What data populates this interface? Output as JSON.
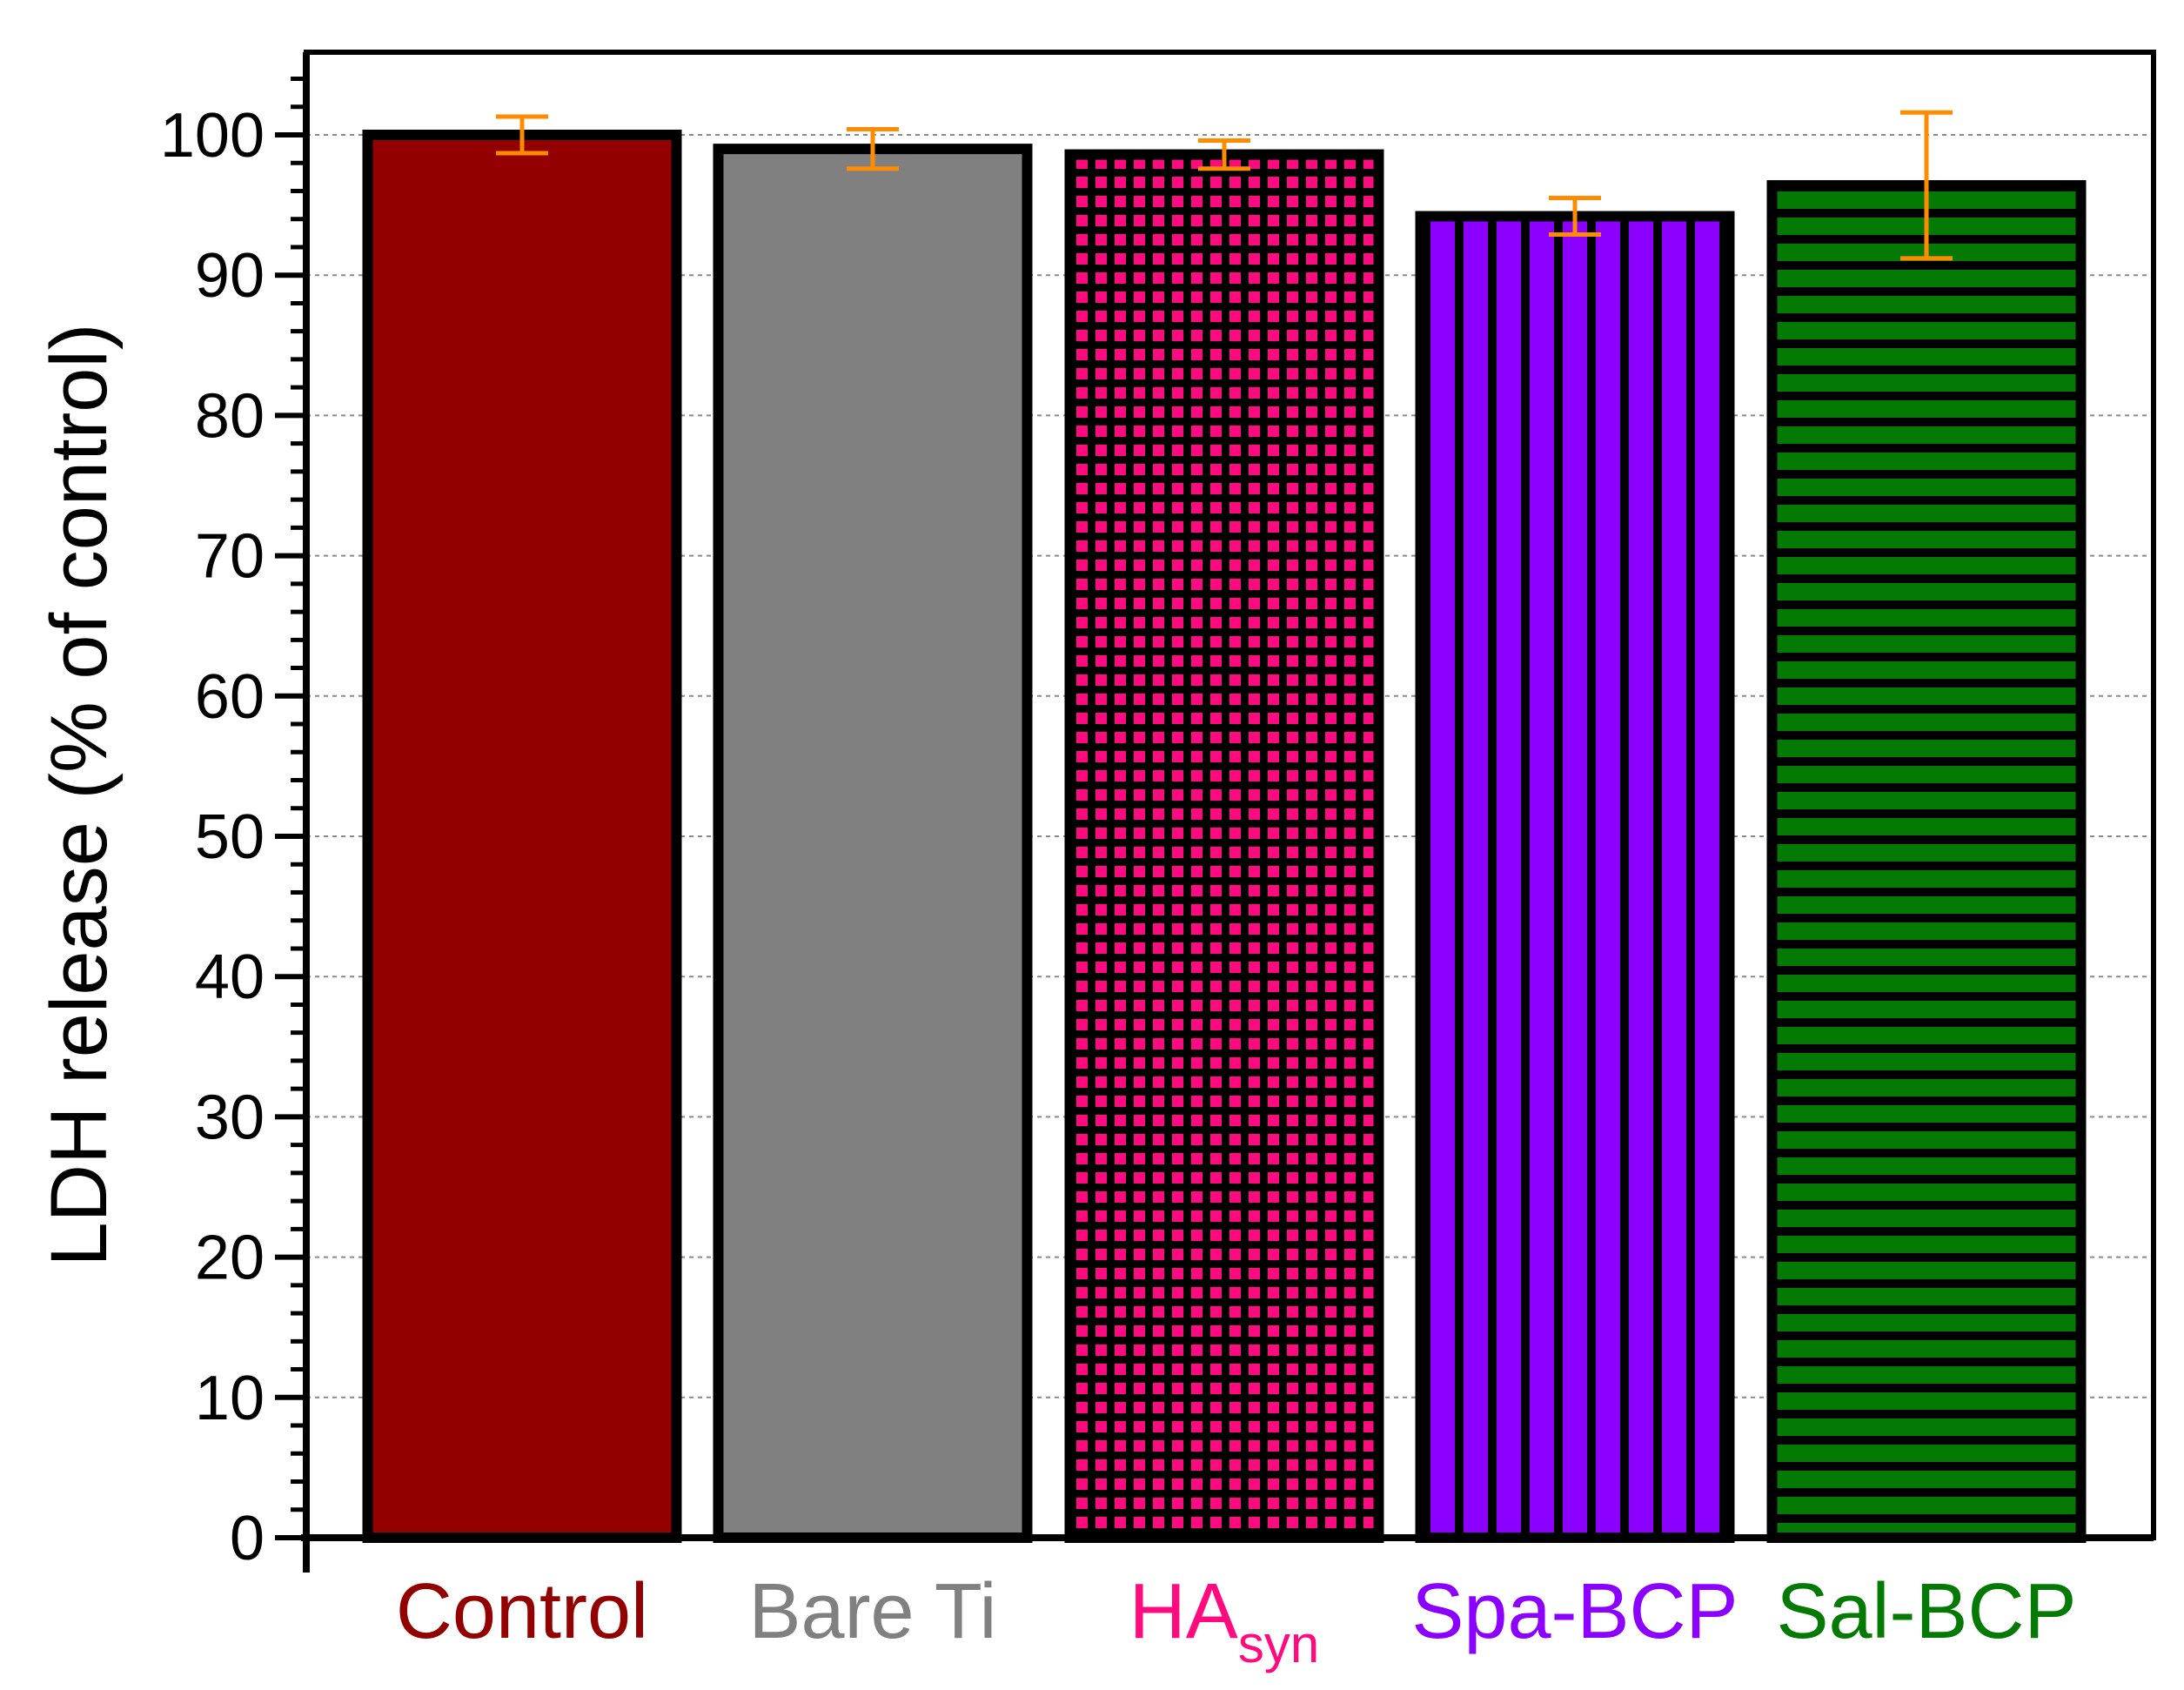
{
  "chart_data": {
    "type": "bar",
    "ylabel": "LDH release (% of control)",
    "ylim": [
      0,
      104
    ],
    "yticks": [
      0,
      10,
      20,
      30,
      40,
      50,
      60,
      70,
      80,
      90,
      100
    ],
    "grid": true,
    "categories": [
      "Control",
      "Bare Ti",
      "HA",
      "Spa-BCP",
      "Sal-BCP"
    ],
    "category_subscripts": [
      "",
      "",
      "syn",
      "",
      ""
    ],
    "values": [
      100,
      99,
      98.6,
      94.2,
      96.4
    ],
    "errors": [
      1.3,
      1.4,
      1.0,
      1.3,
      5.2
    ],
    "bar_colors": [
      "#930000",
      "#808080",
      "#ff0a7f",
      "#8b00ff",
      "#047a04"
    ],
    "bar_patterns": [
      "solid",
      "solid",
      "grid",
      "vertical-lines",
      "horizontal-lines"
    ],
    "error_bar_color": "#ff8c00"
  }
}
